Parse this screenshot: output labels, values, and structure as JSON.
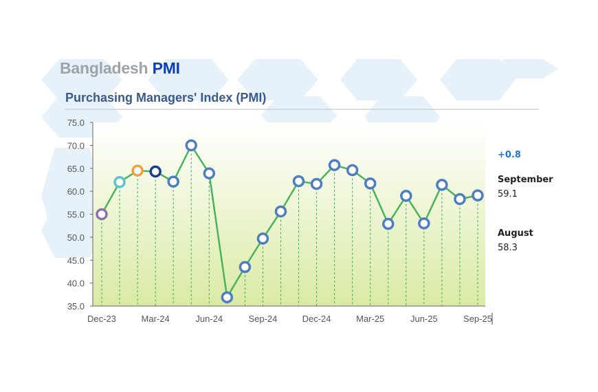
{
  "brand": {
    "light": "Bangladesh",
    "dark": "PMI"
  },
  "side_panel": {
    "change": "+0.8",
    "current_label": "September",
    "current_value": "59.1",
    "previous_label": "August",
    "previous_value": "58.3"
  },
  "colors": {
    "line": "#49b25a",
    "marker": "#4f7ec0",
    "marker_first": "#8e6fb0",
    "marker_second": "#5fc4c7",
    "marker_third": "#f2a03e",
    "marker_fourth": "#1a3f8a",
    "drop_line": "#3aa85a",
    "axis": "#666666",
    "title": "#3a5a8c"
  },
  "chart_data": {
    "type": "line",
    "title": "Purchasing Managers' Index (PMI)",
    "xlabel": "",
    "ylabel": "",
    "ylim": [
      35,
      75
    ],
    "yticks": [
      "35.0",
      "40.0",
      "45.0",
      "50.0",
      "55.0",
      "60.0",
      "65.0",
      "70.0",
      "75.0"
    ],
    "x_tick_labels": [
      "Dec-23",
      "Mar-24",
      "Jun-24",
      "Sep-24",
      "Dec-24",
      "Mar-25",
      "Jun-25",
      "Sep-25"
    ],
    "x": [
      "Dec-23",
      "Jan-24",
      "Feb-24",
      "Mar-24",
      "Apr-24",
      "May-24",
      "Jun-24",
      "Jul-24",
      "Aug-24",
      "Sep-24",
      "Oct-24",
      "Nov-24",
      "Dec-24",
      "Jan-25",
      "Feb-25",
      "Mar-25",
      "Apr-25",
      "May-25",
      "Jun-25",
      "Jul-25",
      "Aug-25",
      "Sep-25"
    ],
    "values": [
      55.0,
      62.0,
      64.5,
      64.3,
      62.1,
      70.0,
      63.9,
      36.9,
      43.5,
      49.7,
      55.6,
      62.2,
      61.6,
      65.7,
      64.6,
      61.7,
      52.9,
      59.0,
      53.0,
      61.4,
      58.3,
      59.1
    ],
    "grid": false,
    "drop_lines": true
  }
}
